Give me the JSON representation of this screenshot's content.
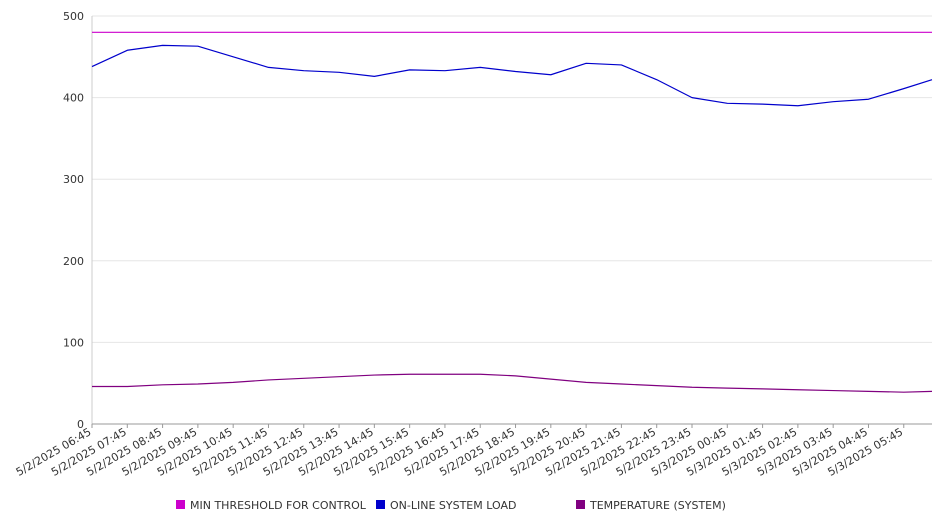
{
  "chart_data": {
    "type": "line",
    "title": "",
    "xlabel": "",
    "ylabel": "",
    "ylim": [
      0,
      500
    ],
    "y_ticks": [
      0,
      100,
      200,
      300,
      400,
      500
    ],
    "x_tick_labels": [
      "5/2/2025 06:45",
      "5/2/2025 07:45",
      "5/2/2025 08:45",
      "5/2/2025 09:45",
      "5/2/2025 10:45",
      "5/2/2025 11:45",
      "5/2/2025 12:45",
      "5/2/2025 13:45",
      "5/2/2025 14:45",
      "5/2/2025 15:45",
      "5/2/2025 16:45",
      "5/2/2025 17:45",
      "5/2/2025 18:45",
      "5/2/2025 19:45",
      "5/2/2025 20:45",
      "5/2/2025 21:45",
      "5/2/2025 22:45",
      "5/2/2025 23:45",
      "5/3/2025 00:45",
      "5/3/2025 01:45",
      "5/3/2025 02:45",
      "5/3/2025 03:45",
      "5/3/2025 04:45",
      "5/3/2025 05:45"
    ],
    "x_hours": [
      0,
      1,
      2,
      3,
      4,
      5,
      6,
      7,
      8,
      9,
      10,
      11,
      12,
      13,
      14,
      15,
      16,
      17,
      18,
      19,
      20,
      21,
      22,
      23,
      23.8
    ],
    "grid": "horizontal",
    "legend_position": "bottom",
    "series": [
      {
        "name": "MIN THRESHOLD FOR CONTROL",
        "color": "#cc00cc",
        "values": [
          480,
          480,
          480,
          480,
          480,
          480,
          480,
          480,
          480,
          480,
          480,
          480,
          480,
          480,
          480,
          480,
          480,
          480,
          480,
          480,
          480,
          480,
          480,
          480,
          480
        ]
      },
      {
        "name": "ON-LINE SYSTEM LOAD",
        "color": "#0000cc",
        "values": [
          438,
          458,
          464,
          463,
          450,
          437,
          433,
          431,
          426,
          434,
          433,
          437,
          432,
          428,
          442,
          440,
          422,
          400,
          393,
          392,
          390,
          395,
          398,
          411,
          422
        ]
      },
      {
        "name": "TEMPERATURE (SYSTEM)",
        "color": "#800080",
        "values": [
          46,
          46,
          48,
          49,
          51,
          54,
          56,
          58,
          60,
          61,
          61,
          61,
          59,
          55,
          51,
          49,
          47,
          45,
          44,
          43,
          42,
          41,
          40,
          39,
          40
        ]
      }
    ]
  }
}
